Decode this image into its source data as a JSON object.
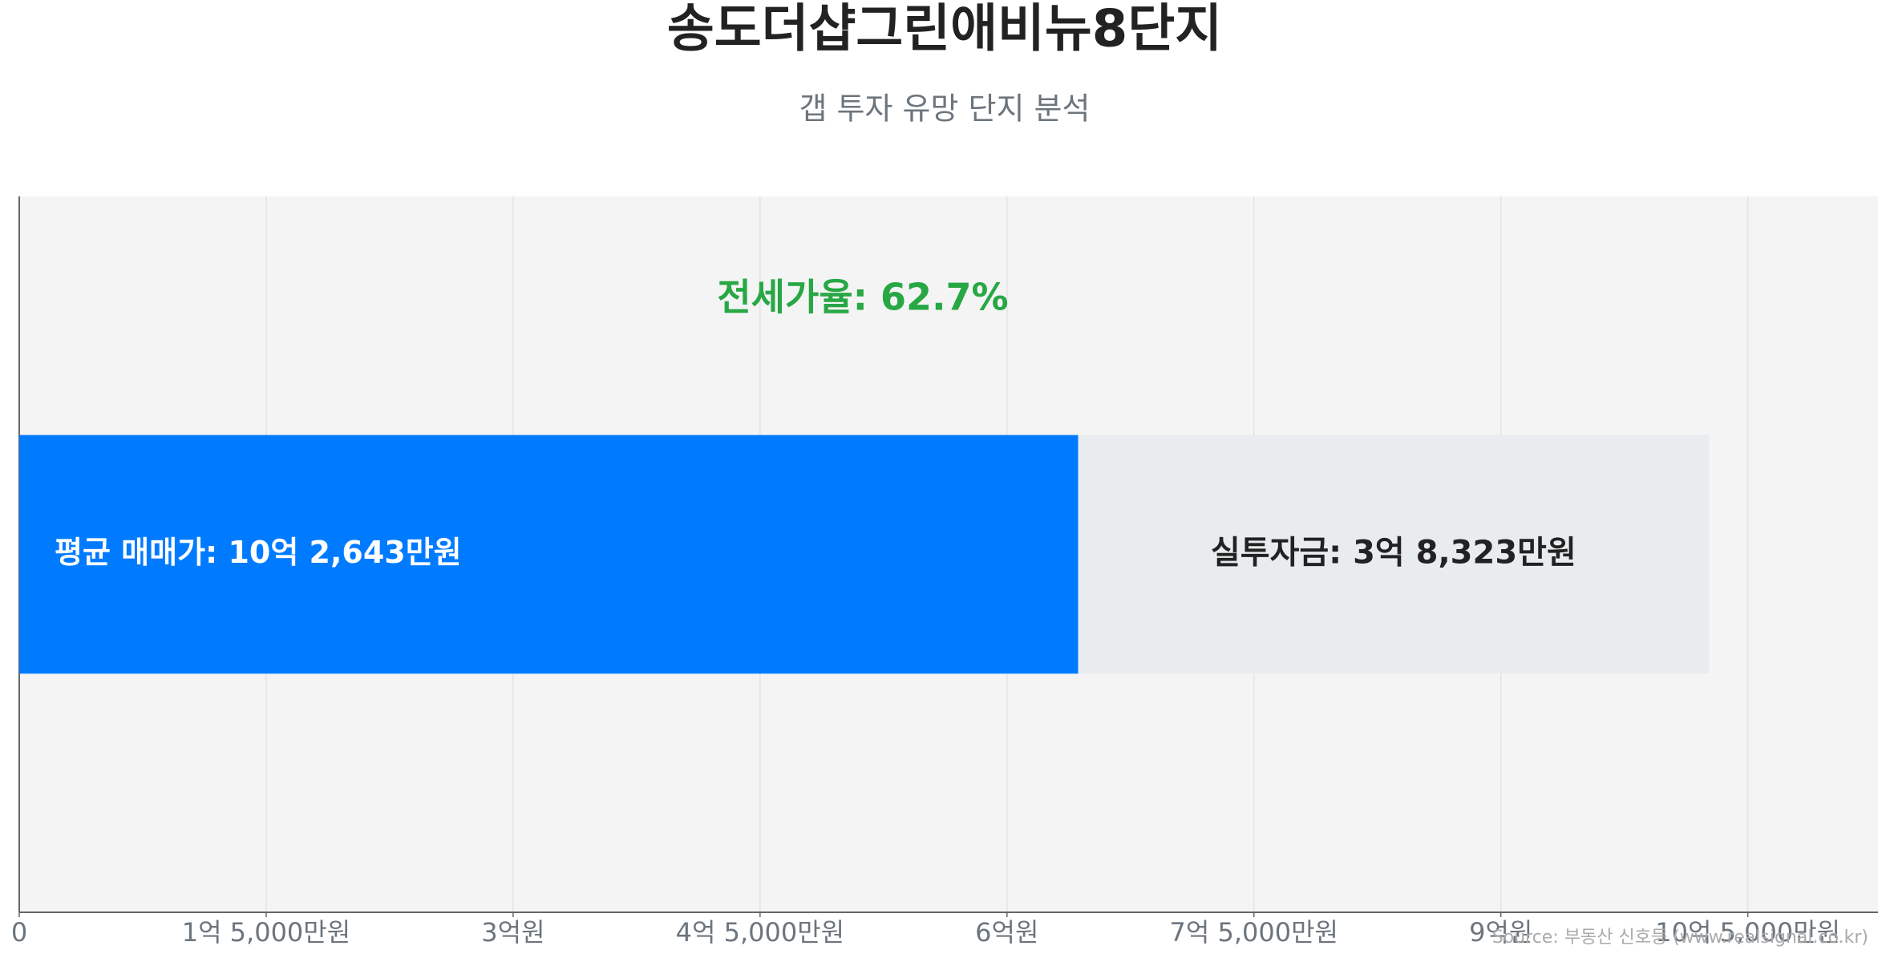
{
  "chart_data": {
    "type": "stacked-hbar",
    "title": "송도더샵그린애비뉴8단지",
    "subtitle": "갭 투자 유망 단지 분석",
    "categories": [
      null
    ],
    "series": [
      {
        "color": "#007bff",
        "values": [
          64320
        ]
      },
      {
        "color": "#e9ecef",
        "values": [
          38323
        ],
        "value_labels": [
          "실투자금: 3억 8,323만원"
        ]
      }
    ],
    "annotations": [
      "전세가율: 62.7%",
      "평균 매매가: 10억 2,643만원"
    ],
    "xlim": [
      0,
      112907
    ],
    "xticks": [
      0,
      {
        "value": 15000,
        "label": "1억 5,000만원"
      },
      {
        "value": 30000,
        "label": "3억원"
      },
      {
        "value": 45000,
        "label": "4억 5,000만원"
      },
      {
        "value": 60000,
        "label": "6억원"
      },
      {
        "value": 75000,
        "label": "7억 5,000만원"
      },
      {
        "value": 90000,
        "label": "9억원"
      },
      {
        "value": 105000,
        "label": "10억 5,000만원"
      }
    ],
    "grid": true,
    "source": "Source: 부동산 신호등 (www.realsignal.co.kr)"
  }
}
